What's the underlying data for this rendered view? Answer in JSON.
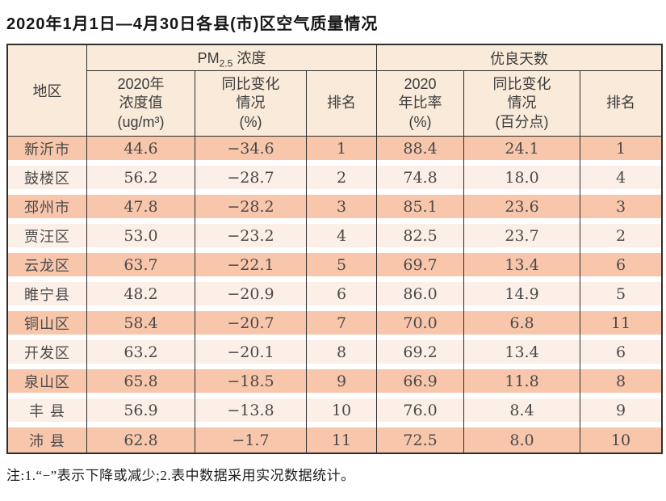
{
  "page": {
    "title": "2020年1月1日—4月30日各县(市)区空气质量情况",
    "footnote": "注:1.“−”表示下降或减少;2.表中数据采用实况数据统计。"
  },
  "table": {
    "header": {
      "region": "地区",
      "pm25_group": {
        "prefix": "PM",
        "sub": "2.5",
        "suffix": " 浓度"
      },
      "good_days_group": "优良天数",
      "columns": [
        "2020年\n浓度值\n(ug/m³)",
        "同比变化\n情况\n(%)",
        "排名",
        "2020\n年比率\n(%)",
        "同比变化\n情况\n(百分点)",
        "排名"
      ]
    },
    "rows": [
      {
        "region": "新沂市",
        "pm_value": "44.6",
        "pm_change": "−34.6",
        "pm_rank": "1",
        "gd_rate": "88.4",
        "gd_change": "24.1",
        "gd_rank": "1"
      },
      {
        "region": "鼓楼区",
        "pm_value": "56.2",
        "pm_change": "−28.7",
        "pm_rank": "2",
        "gd_rate": "74.8",
        "gd_change": "18.0",
        "gd_rank": "4"
      },
      {
        "region": "邳州市",
        "pm_value": "47.8",
        "pm_change": "−28.2",
        "pm_rank": "3",
        "gd_rate": "85.1",
        "gd_change": "23.6",
        "gd_rank": "3"
      },
      {
        "region": "贾汪区",
        "pm_value": "53.0",
        "pm_change": "−23.2",
        "pm_rank": "4",
        "gd_rate": "82.5",
        "gd_change": "23.7",
        "gd_rank": "2"
      },
      {
        "region": "云龙区",
        "pm_value": "63.7",
        "pm_change": "−22.1",
        "pm_rank": "5",
        "gd_rate": "69.7",
        "gd_change": "13.4",
        "gd_rank": "6"
      },
      {
        "region": "睢宁县",
        "pm_value": "48.2",
        "pm_change": "−20.9",
        "pm_rank": "6",
        "gd_rate": "86.0",
        "gd_change": "14.9",
        "gd_rank": "5"
      },
      {
        "region": "铜山区",
        "pm_value": "58.4",
        "pm_change": "−20.7",
        "pm_rank": "7",
        "gd_rate": "70.0",
        "gd_change": "6.8",
        "gd_rank": "11"
      },
      {
        "region": "开发区",
        "pm_value": "63.2",
        "pm_change": "−20.1",
        "pm_rank": "8",
        "gd_rate": "69.2",
        "gd_change": "13.4",
        "gd_rank": "6"
      },
      {
        "region": "泉山区",
        "pm_value": "65.8",
        "pm_change": "−18.5",
        "pm_rank": "9",
        "gd_rate": "66.9",
        "gd_change": "11.8",
        "gd_rank": "8"
      },
      {
        "region": "丰 县",
        "pm_value": "56.9",
        "pm_change": "−13.8",
        "pm_rank": "10",
        "gd_rate": "76.0",
        "gd_change": "8.4",
        "gd_rank": "9"
      },
      {
        "region": "沛 县",
        "pm_value": "62.8",
        "pm_change": "−1.7",
        "pm_rank": "11",
        "gd_rate": "72.5",
        "gd_change": "8.0",
        "gd_rank": "10"
      }
    ]
  },
  "colors": {
    "row_dark": "#f8c6ab",
    "row_light": "#fcefe7",
    "header_bg": "#f9ead9",
    "border": "#2e2e2e",
    "text": "#4a4a4a"
  }
}
